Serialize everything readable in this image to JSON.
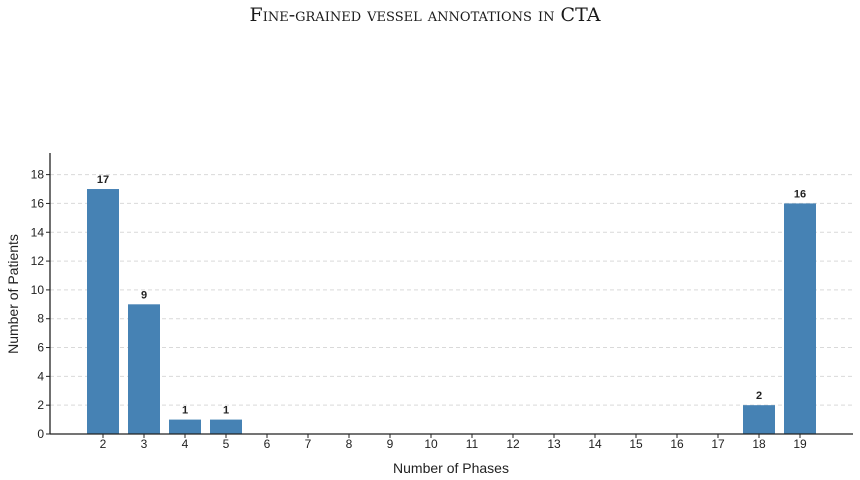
{
  "chart_data": {
    "type": "bar",
    "title": "Fine-grained vessel annotations in CTA",
    "xlabel": "Number of Phases",
    "ylabel": "Number of Patients",
    "categories": [
      "2",
      "3",
      "4",
      "5",
      "6",
      "7",
      "8",
      "9",
      "10",
      "11",
      "12",
      "13",
      "14",
      "15",
      "16",
      "17",
      "18",
      "19"
    ],
    "values": [
      17,
      9,
      1,
      1,
      0,
      0,
      0,
      0,
      0,
      0,
      0,
      0,
      0,
      0,
      0,
      0,
      2,
      16
    ],
    "data_labels": [
      "17",
      "9",
      "1",
      "1",
      "",
      "",
      "",
      "",
      "",
      "",
      "",
      "",
      "",
      "",
      "",
      "",
      "2",
      "16"
    ],
    "yticks": [
      "0",
      "2",
      "4",
      "6",
      "8",
      "10",
      "12",
      "14",
      "16",
      "18"
    ],
    "ylim": [
      0,
      19.5
    ],
    "grid": "horizontal dashed",
    "bar_color": "#4682b4"
  }
}
